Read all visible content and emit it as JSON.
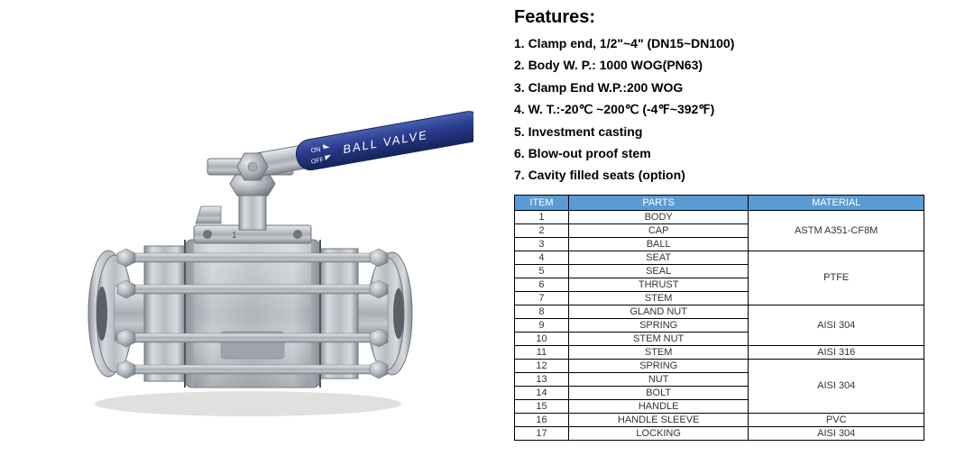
{
  "features": {
    "heading": "Features:",
    "items": [
      "1. Clamp end, 1/2\"~4\" (DN15~DN100)",
      "2. Body W. P.: 1000 WOG(PN63)",
      "3. Clamp End W.P.:200 WOG",
      "4. W. T.:-20℃ ~200℃ (-4℉~392℉)",
      "5. Investment casting",
      "6. Blow-out proof stem",
      "7. Cavity filled seats (option)"
    ]
  },
  "table": {
    "headers": {
      "item": "ITEM",
      "parts": "PARTS",
      "material": "MATERIAL"
    },
    "header_bg": "#5b9bd5",
    "header_fg": "#ffffff",
    "border_color": "#000000",
    "rows": [
      {
        "item": "1",
        "parts": "BODY"
      },
      {
        "item": "2",
        "parts": "CAP"
      },
      {
        "item": "3",
        "parts": "BALL"
      },
      {
        "item": "4",
        "parts": "SEAT"
      },
      {
        "item": "5",
        "parts": "SEAL"
      },
      {
        "item": "6",
        "parts": "THRUST"
      },
      {
        "item": "7",
        "parts": "STEM"
      },
      {
        "item": "8",
        "parts": "GLAND NUT"
      },
      {
        "item": "9",
        "parts": "SPRING"
      },
      {
        "item": "10",
        "parts": "STEM NUT"
      },
      {
        "item": "11",
        "parts": "STEM"
      },
      {
        "item": "12",
        "parts": "SPRING"
      },
      {
        "item": "13",
        "parts": "NUT"
      },
      {
        "item": "14",
        "parts": "BOLT"
      },
      {
        "item": "15",
        "parts": "HANDLE"
      },
      {
        "item": "16",
        "parts": "HANDLE SLEEVE"
      },
      {
        "item": "17",
        "parts": "LOCKING"
      }
    ],
    "materialGroups": [
      {
        "span": 3,
        "value": "ASTM A351-CF8M"
      },
      {
        "span": 4,
        "value": "PTFE"
      },
      {
        "span": 3,
        "value": "AISI 304"
      },
      {
        "span": 1,
        "value": "AISI 316"
      },
      {
        "span": 4,
        "value": "AISI 304"
      },
      {
        "span": 1,
        "value": "PVC"
      },
      {
        "span": 1,
        "value": "AISI 304"
      }
    ]
  },
  "product_image": {
    "handle_label": "BALL VALVE",
    "on_label": "ON",
    "off_label": "OFF",
    "handle_color": "#2a3c8f",
    "handle_outline": "#15245a",
    "body_color": "#b8bcc0",
    "body_highlight": "#e8eaec",
    "body_shadow": "#6f7680",
    "bolt_color": "#9aa0a6",
    "part_number": "1"
  }
}
